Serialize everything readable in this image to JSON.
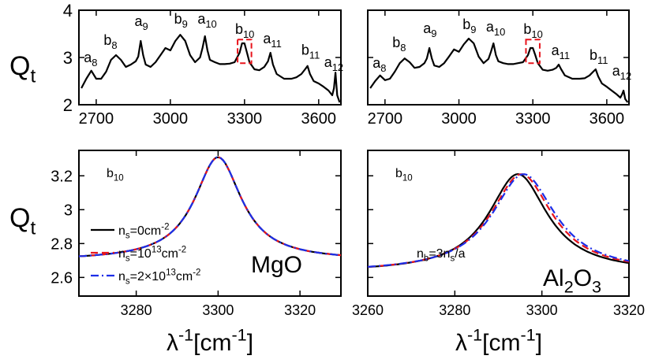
{
  "y_label": {
    "main": "Q",
    "sub": "t"
  },
  "x_label": {
    "main": "λ",
    "sup1": "-1",
    "mid": "[cm",
    "sup2": "-1",
    "end": "]"
  },
  "colors": {
    "ns0": "#000000",
    "ns1": "#e8141c",
    "ns2": "#1c2ee8",
    "box": "#e8141c"
  },
  "chart_data": [
    {
      "type": "line",
      "panel": "top-left",
      "xlim": [
        2630,
        3690
      ],
      "ylim": [
        2,
        4
      ],
      "xticks": [
        2700,
        3000,
        3300,
        3600
      ],
      "yticks": [
        2,
        3,
        4
      ],
      "xtick_labels": [
        "2700",
        "3000",
        "3300",
        "3600"
      ],
      "ytick_labels": [
        "2",
        "3",
        "4"
      ],
      "curve_x": [
        2640,
        2660,
        2680,
        2700,
        2720,
        2740,
        2760,
        2780,
        2800,
        2820,
        2840,
        2860,
        2870,
        2880,
        2890,
        2900,
        2920,
        2940,
        2960,
        2980,
        3000,
        3020,
        3040,
        3060,
        3080,
        3100,
        3120,
        3130,
        3140,
        3150,
        3160,
        3180,
        3200,
        3220,
        3240,
        3260,
        3280,
        3290,
        3300,
        3310,
        3320,
        3340,
        3360,
        3380,
        3395,
        3405,
        3415,
        3430,
        3460,
        3490,
        3510,
        3530,
        3545,
        3555,
        3565,
        3580,
        3600,
        3620,
        3640,
        3655,
        3662,
        3668,
        3675,
        3685
      ],
      "curve_y": [
        2.35,
        2.55,
        2.72,
        2.55,
        2.55,
        2.7,
        2.95,
        3.05,
        2.95,
        2.8,
        2.85,
        2.92,
        3.02,
        3.35,
        3.05,
        2.85,
        2.8,
        2.9,
        3.05,
        3.2,
        3.15,
        3.35,
        3.48,
        3.35,
        3.05,
        2.9,
        3.0,
        3.2,
        3.45,
        3.15,
        2.95,
        2.9,
        2.86,
        2.86,
        2.87,
        2.9,
        3.1,
        3.3,
        3.3,
        3.1,
        2.9,
        2.75,
        2.73,
        2.8,
        2.92,
        3.1,
        2.85,
        2.65,
        2.55,
        2.55,
        2.58,
        2.65,
        2.75,
        2.82,
        2.65,
        2.5,
        2.45,
        2.38,
        2.3,
        2.2,
        2.35,
        2.68,
        2.2,
        2.05
      ],
      "peak_labels": [
        {
          "m": "a",
          "s": "8",
          "x": 2650,
          "y": 2.9
        },
        {
          "m": "b",
          "s": "8",
          "x": 2730,
          "y": 3.27
        },
        {
          "m": "a",
          "s": "9",
          "x": 2855,
          "y": 3.67
        },
        {
          "m": "b",
          "s": "9",
          "x": 3015,
          "y": 3.72
        },
        {
          "m": "a",
          "s": "10",
          "x": 3110,
          "y": 3.72
        },
        {
          "m": "b",
          "s": "10",
          "x": 3262,
          "y": 3.5
        },
        {
          "m": "a",
          "s": "11",
          "x": 3375,
          "y": 3.3
        },
        {
          "m": "b",
          "s": "11",
          "x": 3530,
          "y": 3.06
        },
        {
          "m": "a",
          "s": "12",
          "x": 3622,
          "y": 2.8
        }
      ],
      "highlight_box": {
        "x": [
          3272,
          3328
        ],
        "y": [
          2.88,
          3.38
        ]
      }
    },
    {
      "type": "line",
      "panel": "top-right",
      "xlim": [
        2630,
        3690
      ],
      "ylim": [
        2,
        4
      ],
      "xticks": [
        2700,
        3000,
        3300,
        3600
      ],
      "yticks": [
        2,
        3,
        4
      ],
      "xtick_labels": [
        "2700",
        "3000",
        "3300",
        "3600"
      ],
      "curve_x": [
        2640,
        2660,
        2680,
        2700,
        2720,
        2740,
        2760,
        2780,
        2800,
        2820,
        2840,
        2860,
        2870,
        2880,
        2890,
        2900,
        2920,
        2940,
        2960,
        2980,
        3000,
        3020,
        3040,
        3060,
        3080,
        3100,
        3120,
        3130,
        3140,
        3150,
        3160,
        3180,
        3200,
        3220,
        3240,
        3260,
        3280,
        3290,
        3300,
        3310,
        3320,
        3340,
        3360,
        3380,
        3395,
        3405,
        3415,
        3430,
        3460,
        3490,
        3510,
        3530,
        3545,
        3555,
        3565,
        3580,
        3600,
        3620,
        3640,
        3655,
        3662,
        3668,
        3675,
        3685
      ],
      "curve_y": [
        2.35,
        2.5,
        2.62,
        2.52,
        2.55,
        2.7,
        2.88,
        2.98,
        2.9,
        2.78,
        2.8,
        2.88,
        2.98,
        3.2,
        2.98,
        2.83,
        2.8,
        2.88,
        3.02,
        3.17,
        3.12,
        3.28,
        3.4,
        3.3,
        3.02,
        2.88,
        2.97,
        3.12,
        3.3,
        3.05,
        2.92,
        2.88,
        2.86,
        2.86,
        2.88,
        2.9,
        3.05,
        3.2,
        3.2,
        3.05,
        2.88,
        2.74,
        2.72,
        2.74,
        2.78,
        2.85,
        2.75,
        2.62,
        2.55,
        2.55,
        2.56,
        2.62,
        2.7,
        2.75,
        2.6,
        2.45,
        2.38,
        2.3,
        2.22,
        2.15,
        2.22,
        2.3,
        2.12,
        2.05
      ],
      "peak_labels": [
        {
          "m": "a",
          "s": "8",
          "x": 2650,
          "y": 2.78
        },
        {
          "m": "b",
          "s": "8",
          "x": 2730,
          "y": 3.22
        },
        {
          "m": "a",
          "s": "9",
          "x": 2855,
          "y": 3.52
        },
        {
          "m": "b",
          "s": "9",
          "x": 3015,
          "y": 3.6
        },
        {
          "m": "a",
          "s": "10",
          "x": 3110,
          "y": 3.55
        },
        {
          "m": "b",
          "s": "10",
          "x": 3262,
          "y": 3.5
        },
        {
          "m": "a",
          "s": "11",
          "x": 3375,
          "y": 3.05
        },
        {
          "m": "b",
          "s": "11",
          "x": 3530,
          "y": 2.95
        },
        {
          "m": "a",
          "s": "12",
          "x": 3622,
          "y": 2.62
        }
      ],
      "highlight_box": {
        "x": [
          3272,
          3328
        ],
        "y": [
          2.88,
          3.38
        ]
      }
    },
    {
      "type": "line",
      "panel": "bottom-left",
      "xlim": [
        3266,
        3330
      ],
      "ylim": [
        2.49,
        3.35
      ],
      "xticks": [
        3280,
        3300,
        3320
      ],
      "yticks": [
        2.6,
        2.8,
        3.0,
        3.2
      ],
      "xtick_labels": [
        "3280",
        "3300",
        "3320"
      ],
      "ytick_labels": [
        "2.6",
        "2.8",
        "3",
        "3.2"
      ],
      "peak_label": {
        "m": "b",
        "s": "10"
      },
      "material": "MgO",
      "legend": [
        {
          "pre": "n",
          "sub": "s",
          "val": "=0cm",
          "sup": "-2"
        },
        {
          "pre": "n",
          "sub": "s",
          "val": "=10",
          "sup": "13",
          "post": "cm",
          "sup2": "-2"
        },
        {
          "pre": "n",
          "sub": "s",
          "val": "=2×10",
          "sup": "13",
          "post": "cm",
          "sup2": "-2"
        }
      ],
      "series": [
        {
          "center": 3300,
          "peak": 3.31,
          "base": 2.7,
          "width": 14.0,
          "style": "solid"
        },
        {
          "center": 3300,
          "peak": 3.31,
          "base": 2.7,
          "width": 14.0,
          "style": "dash"
        },
        {
          "center": 3300,
          "peak": 3.31,
          "base": 2.7,
          "width": 14.0,
          "style": "dashdot"
        }
      ]
    },
    {
      "type": "line",
      "panel": "bottom-right",
      "xlim": [
        3260,
        3320
      ],
      "ylim": [
        2.49,
        3.35
      ],
      "xticks": [
        3260,
        3280,
        3300,
        3320
      ],
      "yticks": [
        2.6,
        2.8,
        3.0,
        3.2
      ],
      "xtick_labels": [
        "3260",
        "3280",
        "3300",
        "3320"
      ],
      "peak_label": {
        "m": "b",
        "s": "10"
      },
      "material": {
        "p1": "Al",
        "s1": "2",
        "p2": "O",
        "s2": "3"
      },
      "annotation": {
        "p1": "n",
        "s1": "b",
        "p2": "=3n",
        "s2": "s",
        "p3": "/a"
      },
      "series": [
        {
          "center": 3294.5,
          "peak": 3.21,
          "base": 2.63,
          "width": 16.5,
          "style": "solid"
        },
        {
          "center": 3295.3,
          "peak": 3.21,
          "base": 2.63,
          "width": 17.2,
          "style": "dash"
        },
        {
          "center": 3295.8,
          "peak": 3.21,
          "base": 2.63,
          "width": 17.6,
          "style": "dashdot"
        }
      ]
    }
  ]
}
